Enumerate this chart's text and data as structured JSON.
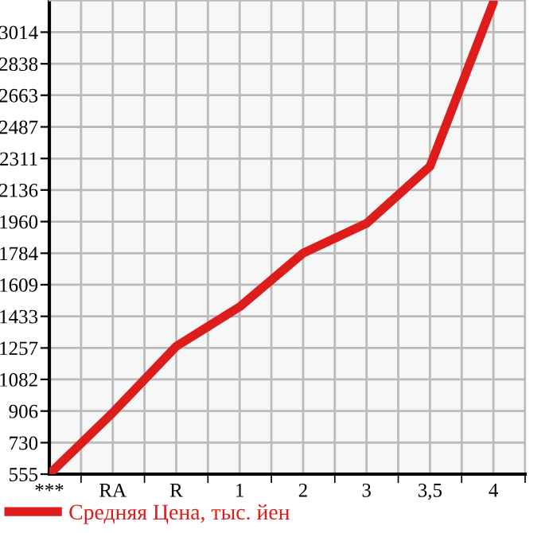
{
  "chart_data": {
    "type": "line",
    "categories": [
      "***",
      "RA",
      "R",
      "1",
      "2",
      "3",
      "3,5",
      "4"
    ],
    "series": [
      {
        "name": "Средняя Цена, тыс. йен",
        "color": "#dd1c1c",
        "values": [
          555,
          897,
          1266,
          1486,
          1784,
          1950,
          2267,
          3180
        ]
      }
    ],
    "ylim": [
      555,
      3190
    ],
    "yticks": [
      555,
      730,
      906,
      1082,
      1257,
      1433,
      1609,
      1784,
      1960,
      2136,
      2311,
      2487,
      2663,
      2838,
      3014
    ],
    "grid": true,
    "legend": "bottom",
    "marker": "none",
    "line_style": "solid"
  }
}
